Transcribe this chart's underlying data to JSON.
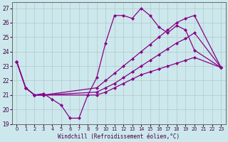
{
  "xlabel": "Windchill (Refroidissement éolien,°C)",
  "background_color": "#cce8ec",
  "line_color": "#880088",
  "grid_color": "#b0c8cc",
  "xlim": [
    -0.5,
    23.5
  ],
  "ylim": [
    19,
    27.4
  ],
  "yticks": [
    19,
    20,
    21,
    22,
    23,
    24,
    25,
    26,
    27
  ],
  "xticks": [
    0,
    1,
    2,
    3,
    4,
    5,
    6,
    7,
    8,
    9,
    10,
    11,
    12,
    13,
    14,
    15,
    16,
    17,
    18,
    19,
    20,
    21,
    22,
    23
  ],
  "series": [
    {
      "x": [
        0,
        1,
        2,
        3,
        4,
        5,
        6,
        7,
        8,
        9,
        10,
        11,
        12,
        13,
        14,
        15,
        16,
        17,
        18,
        19,
        20,
        23
      ],
      "y": [
        23.3,
        21.5,
        21.0,
        21.1,
        20.7,
        20.3,
        19.4,
        19.4,
        21.0,
        22.2,
        24.6,
        26.5,
        26.5,
        26.3,
        27.0,
        26.5,
        25.7,
        25.3,
        25.8,
        25.5,
        24.1,
        22.9
      ]
    },
    {
      "x": [
        0,
        1,
        2,
        3,
        9,
        10,
        11,
        12,
        13,
        14,
        15,
        16,
        17,
        18,
        19,
        20,
        23
      ],
      "y": [
        23.3,
        21.5,
        21.0,
        21.0,
        21.5,
        22.0,
        22.5,
        23.0,
        23.5,
        24.0,
        24.5,
        25.0,
        25.5,
        26.0,
        26.3,
        26.5,
        22.9
      ]
    },
    {
      "x": [
        0,
        1,
        2,
        3,
        9,
        10,
        11,
        12,
        13,
        14,
        15,
        16,
        17,
        18,
        19,
        20,
        23
      ],
      "y": [
        23.3,
        21.5,
        21.0,
        21.0,
        21.2,
        21.5,
        21.8,
        22.2,
        22.6,
        23.0,
        23.4,
        23.8,
        24.2,
        24.6,
        24.9,
        25.3,
        22.9
      ]
    },
    {
      "x": [
        0,
        1,
        2,
        3,
        9,
        10,
        11,
        12,
        13,
        14,
        15,
        16,
        17,
        18,
        19,
        20,
        23
      ],
      "y": [
        23.3,
        21.5,
        21.0,
        21.0,
        21.0,
        21.2,
        21.5,
        21.8,
        22.1,
        22.4,
        22.6,
        22.8,
        23.0,
        23.2,
        23.4,
        23.6,
        22.9
      ]
    }
  ]
}
